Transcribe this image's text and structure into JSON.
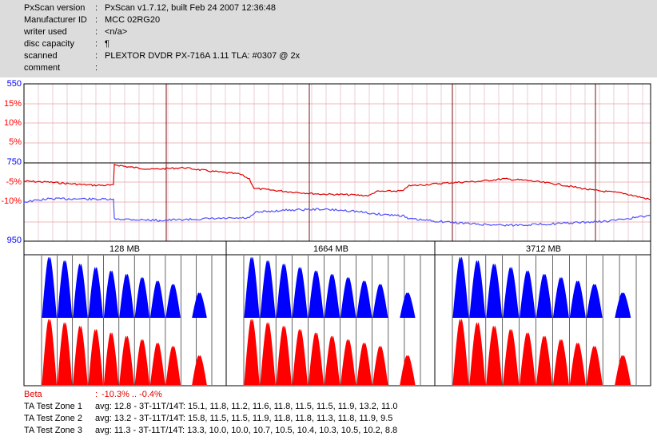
{
  "header": {
    "rows": [
      {
        "key": "PxScan version",
        "colon": ":",
        "value": "PxScan v1.7.12, built Feb 24 2007 12:36:48"
      },
      {
        "key": "Manufacturer ID",
        "colon": ":",
        "value": "MCC 02RG20"
      },
      {
        "key": "writer used",
        "colon": ":",
        "value": "<n/a>"
      },
      {
        "key": "disc capacity",
        "colon": ":",
        "value": "¶"
      },
      {
        "key": "scanned",
        "colon": ":",
        "value": "PLEXTOR DVDR PX-716A 1.11 TLA: #0307 @ 2x"
      },
      {
        "key": "comment",
        "colon": ":",
        "value": ""
      }
    ]
  },
  "jitter_beta_plot": {
    "axis_labels": [
      {
        "text": "550",
        "color": "#0000ff"
      },
      {
        "text": "15%",
        "color": "#ff0000"
      },
      {
        "text": "10%",
        "color": "#ff0000"
      },
      {
        "text": "5%",
        "color": "#ff0000"
      },
      {
        "text": "750",
        "color": "#0000ff"
      },
      {
        "text": "-5%",
        "color": "#ff0000"
      },
      {
        "text": "-10%",
        "color": "#ff0000"
      },
      {
        "text": "950",
        "color": "#0000ff"
      }
    ],
    "beta_trace": {
      "color": "#e00000",
      "min": -10.3,
      "max": -0.4
    },
    "jitter_trace": {
      "color": "#5050ff"
    }
  },
  "ta_zones": {
    "labels": [
      "128 MB",
      "1664 MB",
      "3712 MB"
    ],
    "land_color": "#0000ff",
    "pit_color": "#ff0000"
  },
  "summary": {
    "beta_label": "Beta",
    "beta_colon": ":",
    "beta_value": "-10.3% .. -0.4%",
    "rows": [
      {
        "label": "TA Test Zone 1",
        "avg": "avg: 12.8 - 3T-11T/14T: 15.1, 11.8, 11.2, 11.6, 11.8, 11.5, 11.5, 11.9, 13.2, 11.0"
      },
      {
        "label": "TA Test Zone 2",
        "avg": "avg: 13.2 - 3T-11T/14T: 15.8, 11.5, 11.5, 11.9, 11.8, 11.8, 11.3, 11.8, 11.9, 9.5"
      },
      {
        "label": "TA Test Zone 3",
        "avg": "avg: 11.3 - 3T-11T/14T: 13.3, 10.0, 10.0, 10.7, 10.5, 10.4, 10.3, 10.5, 10.2, 8.8"
      }
    ]
  }
}
